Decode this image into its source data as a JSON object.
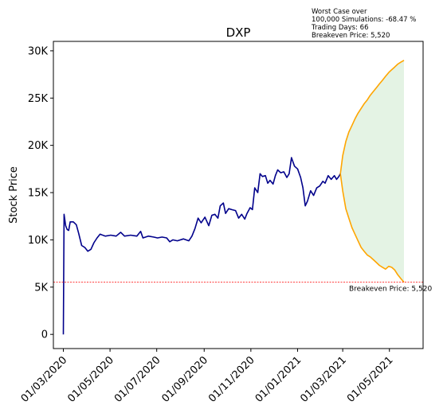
{
  "chart_data": {
    "type": "line",
    "title": "DXP",
    "ylabel": "Stock Price",
    "xlabel": "",
    "ylim": [
      -1500,
      31000
    ],
    "y_ticks": [
      {
        "value": 0,
        "label": "0"
      },
      {
        "value": 5000,
        "label": "5K"
      },
      {
        "value": 10000,
        "label": "10K"
      },
      {
        "value": 15000,
        "label": "15K"
      },
      {
        "value": 20000,
        "label": "20K"
      },
      {
        "value": 25000,
        "label": "25K"
      },
      {
        "value": 30000,
        "label": "30K"
      }
    ],
    "x_ticks": [
      {
        "date": "2020-03-01",
        "label": "01/03/2020"
      },
      {
        "date": "2020-05-01",
        "label": "01/05/2020"
      },
      {
        "date": "2020-07-01",
        "label": "01/07/2020"
      },
      {
        "date": "2020-09-01",
        "label": "01/09/2020"
      },
      {
        "date": "2020-11-01",
        "label": "01/11/2020"
      },
      {
        "date": "2021-01-01",
        "label": "01/01/2021"
      },
      {
        "date": "2021-03-01",
        "label": "01/03/2021"
      },
      {
        "date": "2021-05-01",
        "label": "01/05/2021"
      }
    ],
    "xlim": [
      "2020-02-17",
      "2021-06-14"
    ],
    "annotation_lines": [
      "Worst Case over",
      "100,000 Simulations: -68.47 %",
      "Trading Days: 66",
      "Breakeven Price: 5,520"
    ],
    "breakeven": {
      "value": 5520,
      "label": "Breakeven Price: 5,520",
      "color": "#ff0000"
    },
    "history_color": "#00008b",
    "sim_color": "#ffa500",
    "fill_color": "#2ca02c",
    "history": [
      [
        "2020-03-01",
        0
      ],
      [
        "2020-03-02",
        12700
      ],
      [
        "2020-03-04",
        11500
      ],
      [
        "2020-03-06",
        11100
      ],
      [
        "2020-03-08",
        11000
      ],
      [
        "2020-03-10",
        11900
      ],
      [
        "2020-03-14",
        11900
      ],
      [
        "2020-03-18",
        11600
      ],
      [
        "2020-03-21",
        10700
      ],
      [
        "2020-03-25",
        9400
      ],
      [
        "2020-03-29",
        9200
      ],
      [
        "2020-04-02",
        8800
      ],
      [
        "2020-04-06",
        9000
      ],
      [
        "2020-04-10",
        9700
      ],
      [
        "2020-04-14",
        10200
      ],
      [
        "2020-04-18",
        10600
      ],
      [
        "2020-04-25",
        10400
      ],
      [
        "2020-05-02",
        10500
      ],
      [
        "2020-05-09",
        10400
      ],
      [
        "2020-05-15",
        10800
      ],
      [
        "2020-05-20",
        10400
      ],
      [
        "2020-05-28",
        10500
      ],
      [
        "2020-06-05",
        10400
      ],
      [
        "2020-06-10",
        10900
      ],
      [
        "2020-06-13",
        10200
      ],
      [
        "2020-06-20",
        10400
      ],
      [
        "2020-06-27",
        10300
      ],
      [
        "2020-07-02",
        10200
      ],
      [
        "2020-07-08",
        10300
      ],
      [
        "2020-07-14",
        10200
      ],
      [
        "2020-07-18",
        9800
      ],
      [
        "2020-07-22",
        10000
      ],
      [
        "2020-07-28",
        9900
      ],
      [
        "2020-08-05",
        10100
      ],
      [
        "2020-08-12",
        9900
      ],
      [
        "2020-08-16",
        10400
      ],
      [
        "2020-08-20",
        11200
      ],
      [
        "2020-08-24",
        12300
      ],
      [
        "2020-08-28",
        11800
      ],
      [
        "2020-09-02",
        12400
      ],
      [
        "2020-09-07",
        11500
      ],
      [
        "2020-09-11",
        12600
      ],
      [
        "2020-09-15",
        12700
      ],
      [
        "2020-09-19",
        12300
      ],
      [
        "2020-09-22",
        13600
      ],
      [
        "2020-09-26",
        13900
      ],
      [
        "2020-09-29",
        12800
      ],
      [
        "2020-10-03",
        13300
      ],
      [
        "2020-10-07",
        13200
      ],
      [
        "2020-10-12",
        13100
      ],
      [
        "2020-10-16",
        12300
      ],
      [
        "2020-10-20",
        12700
      ],
      [
        "2020-10-24",
        12200
      ],
      [
        "2020-10-27",
        12800
      ],
      [
        "2020-10-31",
        13400
      ],
      [
        "2020-11-03",
        13200
      ],
      [
        "2020-11-06",
        15500
      ],
      [
        "2020-11-10",
        15000
      ],
      [
        "2020-11-13",
        17000
      ],
      [
        "2020-11-16",
        16700
      ],
      [
        "2020-11-20",
        16800
      ],
      [
        "2020-11-23",
        16000
      ],
      [
        "2020-11-26",
        16300
      ],
      [
        "2020-11-30",
        15900
      ],
      [
        "2020-12-03",
        16800
      ],
      [
        "2020-12-06",
        17400
      ],
      [
        "2020-12-10",
        17100
      ],
      [
        "2020-12-14",
        17200
      ],
      [
        "2020-12-18",
        16600
      ],
      [
        "2020-12-21",
        17000
      ],
      [
        "2020-12-24",
        18700
      ],
      [
        "2020-12-28",
        17800
      ],
      [
        "2021-01-01",
        17500
      ],
      [
        "2021-01-05",
        16600
      ],
      [
        "2021-01-08",
        15500
      ],
      [
        "2021-01-11",
        13600
      ],
      [
        "2021-01-14",
        14100
      ],
      [
        "2021-01-18",
        15200
      ],
      [
        "2021-01-22",
        14700
      ],
      [
        "2021-01-26",
        15500
      ],
      [
        "2021-01-30",
        15700
      ],
      [
        "2021-02-03",
        16200
      ],
      [
        "2021-02-06",
        16000
      ],
      [
        "2021-02-10",
        16800
      ],
      [
        "2021-02-14",
        16400
      ],
      [
        "2021-02-18",
        16800
      ],
      [
        "2021-02-21",
        16400
      ],
      [
        "2021-02-24",
        16700
      ],
      [
        "2021-02-26",
        17000
      ]
    ],
    "simulation_upper": [
      [
        "2021-02-26",
        17000
      ],
      [
        "2021-03-01",
        18900
      ],
      [
        "2021-03-05",
        20400
      ],
      [
        "2021-03-09",
        21400
      ],
      [
        "2021-03-13",
        22100
      ],
      [
        "2021-03-17",
        22800
      ],
      [
        "2021-03-21",
        23400
      ],
      [
        "2021-03-25",
        23900
      ],
      [
        "2021-03-29",
        24400
      ],
      [
        "2021-04-02",
        24800
      ],
      [
        "2021-04-06",
        25300
      ],
      [
        "2021-04-10",
        25700
      ],
      [
        "2021-04-14",
        26100
      ],
      [
        "2021-04-18",
        26500
      ],
      [
        "2021-04-22",
        26900
      ],
      [
        "2021-04-26",
        27300
      ],
      [
        "2021-04-30",
        27700
      ],
      [
        "2021-05-04",
        28000
      ],
      [
        "2021-05-08",
        28300
      ],
      [
        "2021-05-12",
        28600
      ],
      [
        "2021-05-16",
        28800
      ],
      [
        "2021-05-20",
        29000
      ]
    ],
    "simulation_lower": [
      [
        "2021-02-26",
        17000
      ],
      [
        "2021-03-01",
        15200
      ],
      [
        "2021-03-05",
        13300
      ],
      [
        "2021-03-09",
        12300
      ],
      [
        "2021-03-13",
        11300
      ],
      [
        "2021-03-17",
        10600
      ],
      [
        "2021-03-21",
        9900
      ],
      [
        "2021-03-25",
        9200
      ],
      [
        "2021-03-29",
        8800
      ],
      [
        "2021-04-02",
        8400
      ],
      [
        "2021-04-06",
        8200
      ],
      [
        "2021-04-10",
        7900
      ],
      [
        "2021-04-14",
        7600
      ],
      [
        "2021-04-18",
        7300
      ],
      [
        "2021-04-22",
        7100
      ],
      [
        "2021-04-26",
        6900
      ],
      [
        "2021-04-30",
        7200
      ],
      [
        "2021-05-04",
        7100
      ],
      [
        "2021-05-08",
        6800
      ],
      [
        "2021-05-12",
        6300
      ],
      [
        "2021-05-16",
        5900
      ],
      [
        "2021-05-20",
        5520
      ]
    ]
  }
}
